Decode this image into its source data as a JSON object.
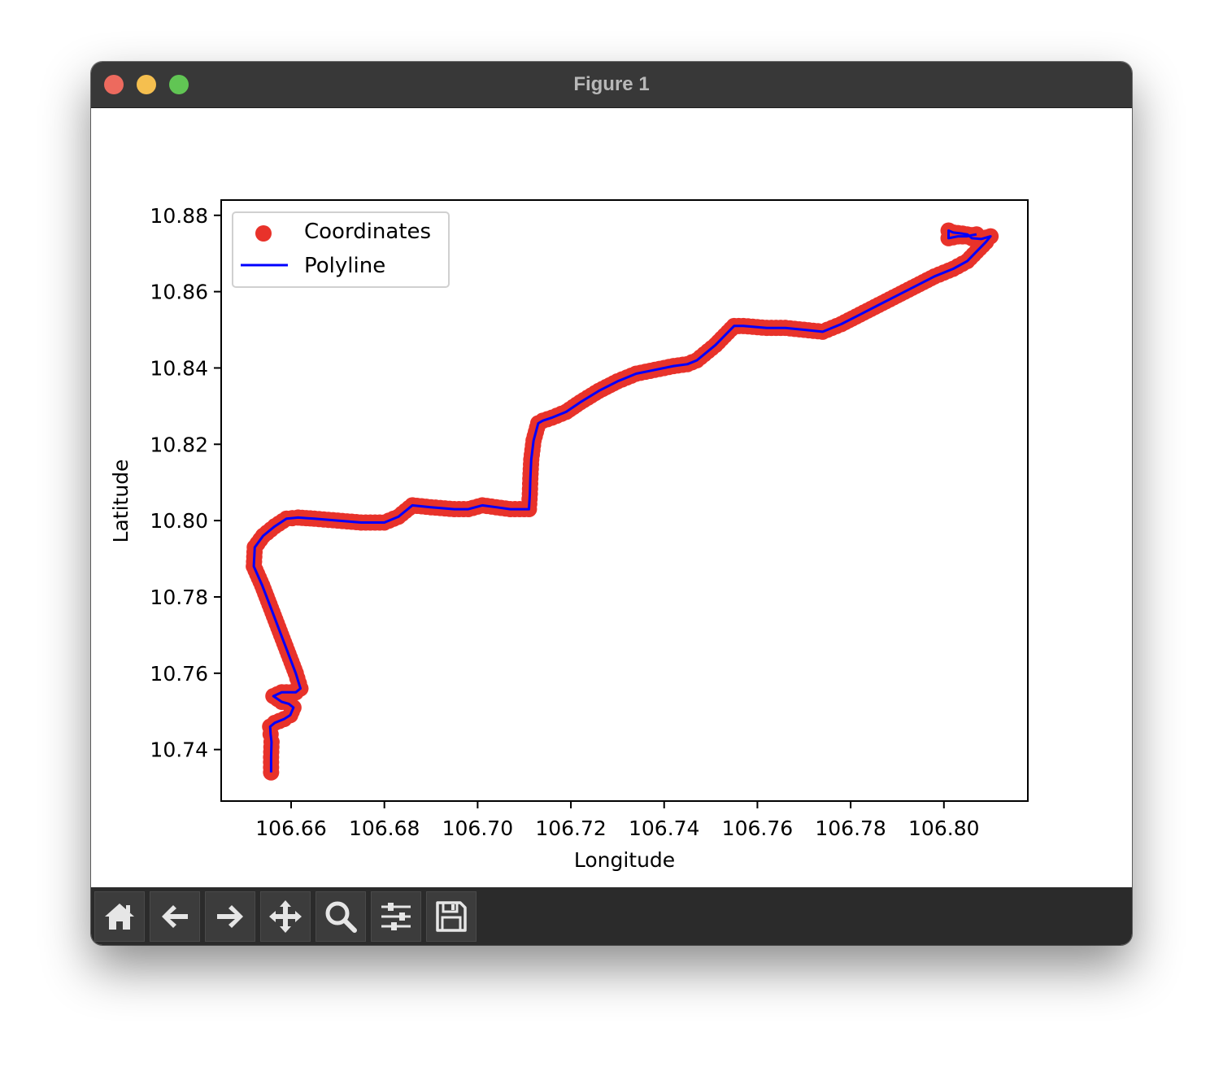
{
  "window": {
    "title": "Figure 1"
  },
  "toolbar": {
    "buttons": [
      {
        "name": "home-button",
        "icon": "home-icon"
      },
      {
        "name": "back-button",
        "icon": "arrow-left-icon"
      },
      {
        "name": "forward-button",
        "icon": "arrow-right-icon"
      },
      {
        "name": "pan-button",
        "icon": "move-icon"
      },
      {
        "name": "zoom-button",
        "icon": "magnifier-icon"
      },
      {
        "name": "subplots-button",
        "icon": "sliders-icon"
      },
      {
        "name": "save-button",
        "icon": "floppy-disk-icon"
      }
    ]
  },
  "colors": {
    "scatter": "#e8322a",
    "line": "#0000ff",
    "titlebar": "#383838",
    "toolbar": "#2b2b2b"
  },
  "chart_data": {
    "type": "scatter",
    "xlabel": "Longitude",
    "ylabel": "Latitude",
    "xlim": [
      106.645,
      106.818
    ],
    "ylim": [
      10.7265,
      10.884
    ],
    "xticks": [
      106.66,
      106.68,
      106.7,
      106.72,
      106.74,
      106.76,
      106.78,
      106.8
    ],
    "xtick_labels": [
      "106.66",
      "106.68",
      "106.70",
      "106.72",
      "106.74",
      "106.76",
      "106.78",
      "106.80"
    ],
    "yticks": [
      10.74,
      10.76,
      10.78,
      10.8,
      10.82,
      10.84,
      10.86,
      10.88
    ],
    "ytick_labels": [
      "10.74",
      "10.76",
      "10.78",
      "10.80",
      "10.82",
      "10.84",
      "10.86",
      "10.88"
    ],
    "legend": {
      "placement": "upper left",
      "entries": [
        {
          "label": "Coordinates",
          "kind": "scatter",
          "color": "#e8322a"
        },
        {
          "label": "Polyline",
          "kind": "line",
          "color": "#0000ff"
        }
      ]
    },
    "series": [
      {
        "name": "Coordinates",
        "color": "#e8322a",
        "x": [
          106.6557,
          106.6557,
          106.6558,
          106.6556,
          106.6555,
          106.6565,
          106.6585,
          106.6598,
          106.6605,
          106.6595,
          106.658,
          106.6562,
          106.658,
          106.661,
          106.662,
          106.661,
          106.6585,
          106.656,
          106.6538,
          106.652,
          106.6522,
          106.654,
          106.6565,
          106.659,
          106.6615,
          106.665,
          106.67,
          106.675,
          106.679,
          106.68,
          106.683,
          106.686,
          106.69,
          106.695,
          106.698,
          106.701,
          106.704,
          106.707,
          106.711,
          106.7112,
          106.7113,
          106.7115,
          106.712,
          106.713,
          106.714,
          106.716,
          106.719,
          106.722,
          106.726,
          106.73,
          106.734,
          106.738,
          106.742,
          106.745,
          106.747,
          106.751,
          106.755,
          106.757,
          106.762,
          106.766,
          106.77,
          106.774,
          106.778,
          106.782,
          106.786,
          106.79,
          106.794,
          106.798,
          106.802,
          106.805,
          106.807,
          106.809,
          106.81,
          106.808,
          106.806,
          106.805,
          106.804,
          106.802,
          106.801,
          106.801,
          106.803,
          106.805,
          106.806,
          106.807
        ],
        "y": [
          10.734,
          10.738,
          10.742,
          10.744,
          10.746,
          10.747,
          10.748,
          10.749,
          10.751,
          10.752,
          10.7525,
          10.754,
          10.755,
          10.755,
          10.756,
          10.76,
          10.768,
          10.776,
          10.783,
          10.788,
          10.793,
          10.796,
          10.7985,
          10.8005,
          10.8008,
          10.8005,
          10.8,
          10.7995,
          10.7995,
          10.7995,
          10.801,
          10.804,
          10.8035,
          10.803,
          10.803,
          10.804,
          10.8035,
          10.803,
          10.803,
          10.807,
          10.811,
          10.816,
          10.821,
          10.8255,
          10.8262,
          10.827,
          10.8285,
          10.831,
          10.834,
          10.8365,
          10.8385,
          10.8395,
          10.8405,
          10.841,
          10.842,
          10.846,
          10.851,
          10.851,
          10.8505,
          10.8505,
          10.85,
          10.8495,
          10.8515,
          10.854,
          10.8565,
          10.859,
          10.8615,
          10.864,
          10.866,
          10.868,
          10.8705,
          10.873,
          10.8745,
          10.8738,
          10.874,
          10.875,
          10.8752,
          10.8755,
          10.876,
          10.874,
          10.8745,
          10.8745,
          10.8748,
          10.875
        ]
      },
      {
        "name": "Polyline",
        "color": "#0000ff",
        "x": [
          106.6557,
          106.6557,
          106.6558,
          106.6556,
          106.6555,
          106.6565,
          106.6585,
          106.6598,
          106.6605,
          106.6595,
          106.658,
          106.6562,
          106.658,
          106.661,
          106.662,
          106.661,
          106.6585,
          106.656,
          106.6538,
          106.652,
          106.6522,
          106.654,
          106.6565,
          106.659,
          106.6615,
          106.665,
          106.67,
          106.675,
          106.679,
          106.68,
          106.683,
          106.686,
          106.69,
          106.695,
          106.698,
          106.701,
          106.704,
          106.707,
          106.711,
          106.7112,
          106.7113,
          106.7115,
          106.712,
          106.713,
          106.714,
          106.716,
          106.719,
          106.722,
          106.726,
          106.73,
          106.734,
          106.738,
          106.742,
          106.745,
          106.747,
          106.751,
          106.755,
          106.757,
          106.762,
          106.766,
          106.77,
          106.774,
          106.778,
          106.782,
          106.786,
          106.79,
          106.794,
          106.798,
          106.802,
          106.805,
          106.807,
          106.809,
          106.81,
          106.808,
          106.806,
          106.805,
          106.804,
          106.802,
          106.801,
          106.801,
          106.803,
          106.805,
          106.806,
          106.807
        ],
        "y": [
          10.734,
          10.738,
          10.742,
          10.744,
          10.746,
          10.747,
          10.748,
          10.749,
          10.751,
          10.752,
          10.7525,
          10.754,
          10.755,
          10.755,
          10.756,
          10.76,
          10.768,
          10.776,
          10.783,
          10.788,
          10.793,
          10.796,
          10.7985,
          10.8005,
          10.8008,
          10.8005,
          10.8,
          10.7995,
          10.7995,
          10.7995,
          10.801,
          10.804,
          10.8035,
          10.803,
          10.803,
          10.804,
          10.8035,
          10.803,
          10.803,
          10.807,
          10.811,
          10.816,
          10.821,
          10.8255,
          10.8262,
          10.827,
          10.8285,
          10.831,
          10.834,
          10.8365,
          10.8385,
          10.8395,
          10.8405,
          10.841,
          10.842,
          10.846,
          10.851,
          10.851,
          10.8505,
          10.8505,
          10.85,
          10.8495,
          10.8515,
          10.854,
          10.8565,
          10.859,
          10.8615,
          10.864,
          10.866,
          10.868,
          10.8705,
          10.873,
          10.8745,
          10.8738,
          10.874,
          10.875,
          10.8752,
          10.8755,
          10.876,
          10.874,
          10.8745,
          10.8745,
          10.8748,
          10.875
        ]
      }
    ]
  }
}
